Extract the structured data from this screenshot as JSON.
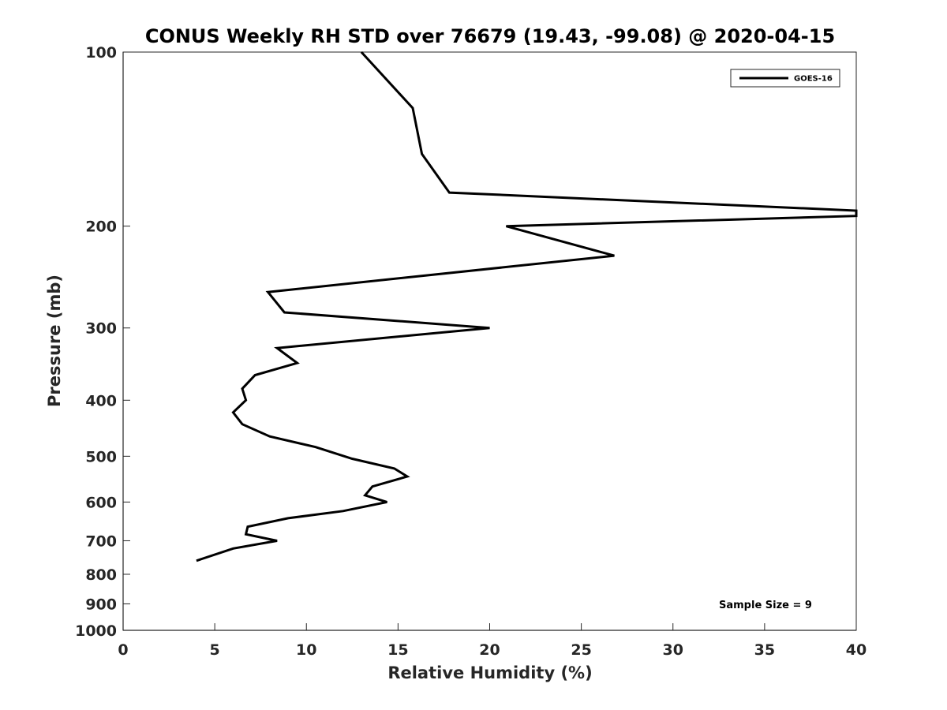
{
  "chart_data": {
    "type": "line",
    "title": "CONUS Weekly RH STD over 76679 (19.43, -99.08) @ 2020-04-15",
    "xlabel": "Relative Humidity (%)",
    "ylabel": "Pressure (mb)",
    "xlim": [
      0,
      40
    ],
    "ylim": [
      1000,
      100
    ],
    "y_scale": "log",
    "y_reversed": true,
    "x_ticks": [
      "0",
      "5",
      "10",
      "15",
      "20",
      "25",
      "30",
      "35",
      "40"
    ],
    "y_ticks": [
      "100",
      "200",
      "300",
      "400",
      "500",
      "600",
      "700",
      "800",
      "900",
      "1000"
    ],
    "grid": false,
    "legend_position": "top-right",
    "series": [
      {
        "name": "GOES-16",
        "color": "#000000",
        "points": [
          {
            "x": 13.0,
            "p": 100
          },
          {
            "x": 15.8,
            "p": 125
          },
          {
            "x": 16.3,
            "p": 150
          },
          {
            "x": 17.8,
            "p": 175
          },
          {
            "x": 40.0,
            "p": 188
          },
          {
            "x": 40.0,
            "p": 192
          },
          {
            "x": 20.9,
            "p": 200
          },
          {
            "x": 26.8,
            "p": 225
          },
          {
            "x": 7.9,
            "p": 260
          },
          {
            "x": 8.8,
            "p": 282
          },
          {
            "x": 20.0,
            "p": 300
          },
          {
            "x": 8.4,
            "p": 325
          },
          {
            "x": 9.5,
            "p": 345
          },
          {
            "x": 7.2,
            "p": 362
          },
          {
            "x": 6.5,
            "p": 382
          },
          {
            "x": 6.7,
            "p": 400
          },
          {
            "x": 6.0,
            "p": 420
          },
          {
            "x": 6.5,
            "p": 440
          },
          {
            "x": 8.0,
            "p": 462
          },
          {
            "x": 10.5,
            "p": 482
          },
          {
            "x": 12.5,
            "p": 505
          },
          {
            "x": 14.8,
            "p": 525
          },
          {
            "x": 15.5,
            "p": 542
          },
          {
            "x": 13.6,
            "p": 564
          },
          {
            "x": 13.2,
            "p": 584
          },
          {
            "x": 14.4,
            "p": 600
          },
          {
            "x": 12.0,
            "p": 622
          },
          {
            "x": 9.0,
            "p": 640
          },
          {
            "x": 6.8,
            "p": 662
          },
          {
            "x": 6.7,
            "p": 682
          },
          {
            "x": 8.4,
            "p": 700
          },
          {
            "x": 6.0,
            "p": 722
          },
          {
            "x": 4.0,
            "p": 758
          }
        ]
      }
    ],
    "annotation": "Sample Size = 9"
  }
}
